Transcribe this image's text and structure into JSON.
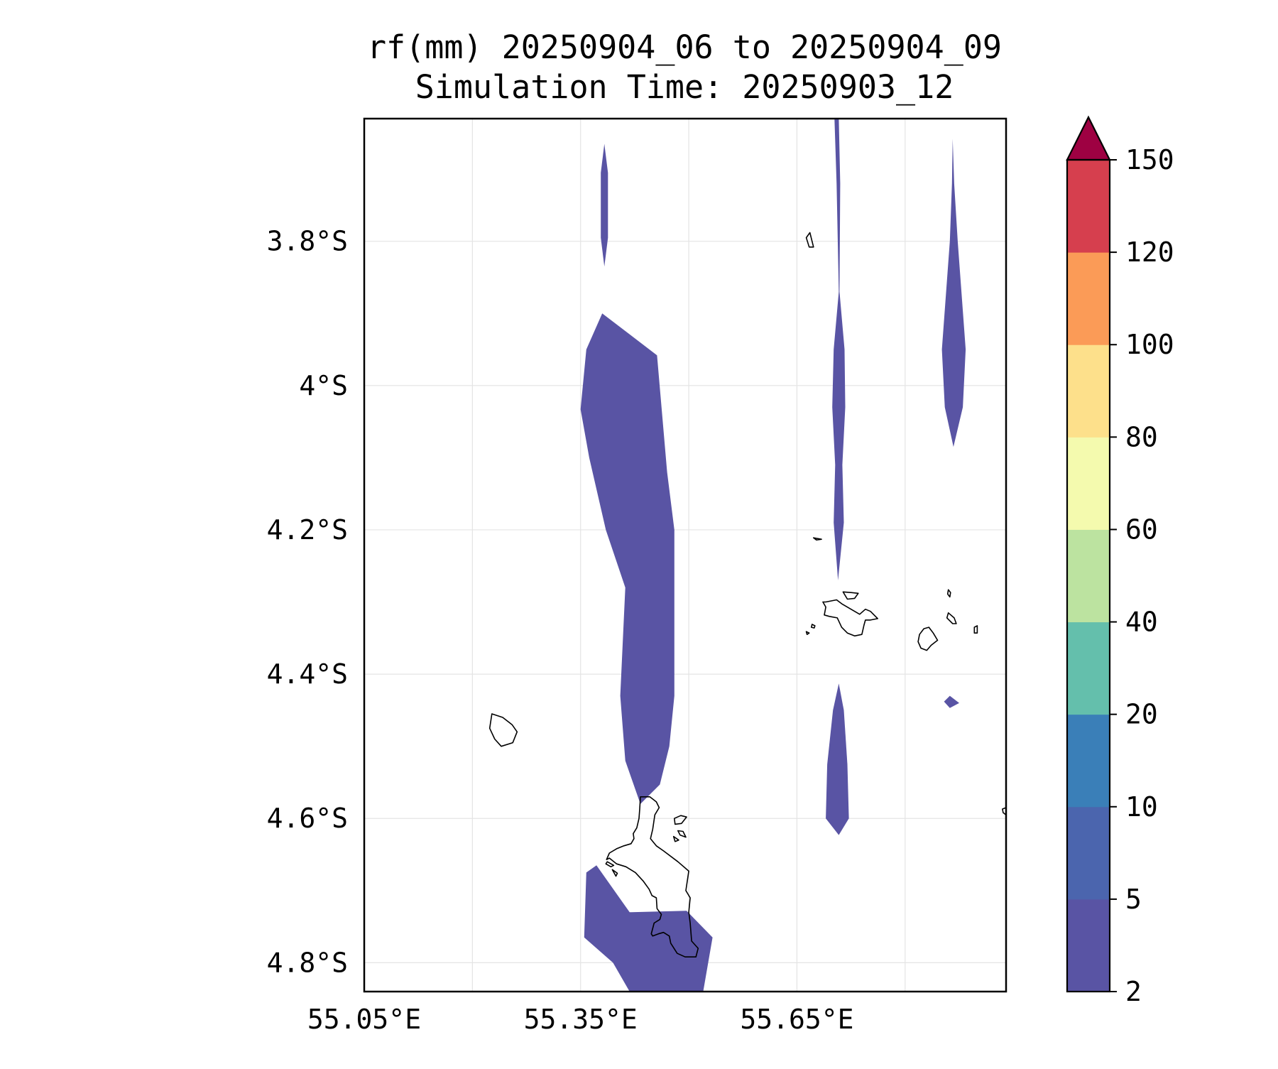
{
  "chart_data": {
    "type": "contour_map",
    "title": "rf(mm) 20250904_06 to 20250904_09",
    "subtitle": "Simulation Time: 20250903_12",
    "xlim": [
      55.05,
      55.94
    ],
    "ylim": [
      -4.84,
      -3.63
    ],
    "x_ticks": [
      {
        "value": 55.05,
        "label": "55.05°E"
      },
      {
        "value": 55.35,
        "label": "55.35°E"
      },
      {
        "value": 55.65,
        "label": "55.65°E"
      }
    ],
    "x_gridlines": [
      55.2,
      55.35,
      55.5,
      55.65,
      55.8
    ],
    "y_ticks": [
      {
        "value": -3.8,
        "label": "3.8°S"
      },
      {
        "value": -4.0,
        "label": "4°S"
      },
      {
        "value": -4.2,
        "label": "4.2°S"
      },
      {
        "value": -4.4,
        "label": "4.4°S"
      },
      {
        "value": -4.6,
        "label": "4.6°S"
      },
      {
        "value": -4.8,
        "label": "4.8°S"
      }
    ],
    "colorbar": {
      "levels": [
        2,
        5,
        10,
        20,
        40,
        60,
        80,
        100,
        120,
        150
      ],
      "labels": [
        "2",
        "5",
        "10",
        "20",
        "40",
        "60",
        "80",
        "100",
        "120",
        "150"
      ],
      "colors": [
        "#5954a4",
        "#4b65ae",
        "#3a7fb8",
        "#64bfac",
        "#bce3a0",
        "#f4faae",
        "#fde08b",
        "#fb9b57",
        "#d63f4e",
        "#9e0142"
      ],
      "extend": "max"
    },
    "rain_color": "#5954a4",
    "coast_color": "#000000",
    "rain_regions": [
      {
        "name": "north-narrow-cell",
        "level": "2-5",
        "points": [
          [
            55.383,
            -3.665
          ],
          [
            55.388,
            -3.705
          ],
          [
            55.388,
            -3.795
          ],
          [
            55.383,
            -3.835
          ],
          [
            55.378,
            -3.795
          ],
          [
            55.378,
            -3.705
          ]
        ]
      },
      {
        "name": "central-band",
        "level": "2-5",
        "points": [
          [
            55.38,
            -3.9
          ],
          [
            55.456,
            -3.958
          ],
          [
            55.47,
            -4.12
          ],
          [
            55.48,
            -4.2
          ],
          [
            55.48,
            -4.43
          ],
          [
            55.473,
            -4.5
          ],
          [
            55.46,
            -4.553
          ],
          [
            55.433,
            -4.58
          ],
          [
            55.412,
            -4.52
          ],
          [
            55.405,
            -4.43
          ],
          [
            55.412,
            -4.28
          ],
          [
            55.385,
            -4.2
          ],
          [
            55.362,
            -4.1
          ],
          [
            55.35,
            -4.033
          ],
          [
            55.358,
            -3.95
          ]
        ]
      },
      {
        "name": "southern-cell",
        "level": "2-5",
        "points": [
          [
            55.358,
            -4.675
          ],
          [
            55.372,
            -4.665
          ],
          [
            55.418,
            -4.73
          ],
          [
            55.497,
            -4.728
          ],
          [
            55.533,
            -4.765
          ],
          [
            55.52,
            -4.84
          ],
          [
            55.418,
            -4.84
          ],
          [
            55.395,
            -4.8
          ],
          [
            55.355,
            -4.765
          ]
        ]
      },
      {
        "name": "eastern-narrow-band",
        "level": "2-5",
        "points": [
          [
            55.702,
            -3.63
          ],
          [
            55.708,
            -3.63
          ],
          [
            55.71,
            -3.72
          ],
          [
            55.709,
            -3.87
          ],
          [
            55.716,
            -3.95
          ],
          [
            55.717,
            -4.03
          ],
          [
            55.713,
            -4.11
          ],
          [
            55.715,
            -4.19
          ],
          [
            55.707,
            -4.27
          ],
          [
            55.701,
            -4.19
          ],
          [
            55.703,
            -4.11
          ],
          [
            55.699,
            -4.03
          ],
          [
            55.701,
            -3.95
          ],
          [
            55.708,
            -3.87
          ],
          [
            55.705,
            -3.72
          ]
        ]
      },
      {
        "name": "far-east-band",
        "level": "2-5",
        "points": [
          [
            55.866,
            -3.658
          ],
          [
            55.868,
            -3.72
          ],
          [
            55.873,
            -3.8
          ],
          [
            55.884,
            -3.95
          ],
          [
            55.88,
            -4.03
          ],
          [
            55.867,
            -4.085
          ],
          [
            55.855,
            -4.03
          ],
          [
            55.851,
            -3.95
          ],
          [
            55.862,
            -3.8
          ],
          [
            55.865,
            -3.72
          ]
        ]
      },
      {
        "name": "southeast-cell",
        "level": "2-5",
        "points": [
          [
            55.708,
            -4.413
          ],
          [
            55.715,
            -4.45
          ],
          [
            55.72,
            -4.525
          ],
          [
            55.722,
            -4.6
          ],
          [
            55.708,
            -4.623
          ],
          [
            55.69,
            -4.6
          ],
          [
            55.692,
            -4.525
          ],
          [
            55.7,
            -4.45
          ]
        ]
      },
      {
        "name": "small-east-cell",
        "level": "2-5",
        "points": [
          [
            55.854,
            -4.438
          ],
          [
            55.862,
            -4.43
          ],
          [
            55.875,
            -4.44
          ],
          [
            55.862,
            -4.447
          ]
        ]
      }
    ],
    "coastlines": [
      {
        "name": "mahe-island",
        "points": [
          [
            55.433,
            -4.57
          ],
          [
            55.446,
            -4.57
          ],
          [
            55.455,
            -4.577
          ],
          [
            55.459,
            -4.585
          ],
          [
            55.453,
            -4.595
          ],
          [
            55.45,
            -4.615
          ],
          [
            55.447,
            -4.628
          ],
          [
            55.455,
            -4.638
          ],
          [
            55.465,
            -4.645
          ],
          [
            55.485,
            -4.66
          ],
          [
            55.5,
            -4.673
          ],
          [
            55.496,
            -4.7
          ],
          [
            55.502,
            -4.71
          ],
          [
            55.5,
            -4.73
          ],
          [
            55.502,
            -4.745
          ],
          [
            55.504,
            -4.77
          ],
          [
            55.513,
            -4.78
          ],
          [
            55.51,
            -4.792
          ],
          [
            55.495,
            -4.792
          ],
          [
            55.484,
            -4.787
          ],
          [
            55.475,
            -4.773
          ],
          [
            55.473,
            -4.763
          ],
          [
            55.465,
            -4.758
          ],
          [
            55.458,
            -4.76
          ],
          [
            55.45,
            -4.763
          ],
          [
            55.448,
            -4.76
          ],
          [
            55.452,
            -4.745
          ],
          [
            55.46,
            -4.74
          ],
          [
            55.462,
            -4.733
          ],
          [
            55.456,
            -4.725
          ],
          [
            55.455,
            -4.71
          ],
          [
            55.449,
            -4.707
          ],
          [
            55.445,
            -4.698
          ],
          [
            55.437,
            -4.687
          ],
          [
            55.426,
            -4.675
          ],
          [
            55.413,
            -4.667
          ],
          [
            55.4,
            -4.663
          ],
          [
            55.39,
            -4.655
          ],
          [
            55.386,
            -4.657
          ],
          [
            55.39,
            -4.648
          ],
          [
            55.4,
            -4.642
          ],
          [
            55.41,
            -4.638
          ],
          [
            55.42,
            -4.635
          ],
          [
            55.424,
            -4.628
          ],
          [
            55.423,
            -4.621
          ],
          [
            55.428,
            -4.613
          ],
          [
            55.431,
            -4.6
          ],
          [
            55.432,
            -4.587
          ]
        ]
      },
      {
        "name": "silhouette-island",
        "points": [
          [
            55.227,
            -4.455
          ],
          [
            55.242,
            -4.46
          ],
          [
            55.255,
            -4.47
          ],
          [
            55.262,
            -4.48
          ],
          [
            55.256,
            -4.495
          ],
          [
            55.24,
            -4.5
          ],
          [
            55.231,
            -4.49
          ],
          [
            55.224,
            -4.475
          ]
        ]
      },
      {
        "name": "praslin-island",
        "points": [
          [
            55.69,
            -4.3
          ],
          [
            55.705,
            -4.297
          ],
          [
            55.713,
            -4.303
          ],
          [
            55.725,
            -4.31
          ],
          [
            55.737,
            -4.317
          ],
          [
            55.745,
            -4.31
          ],
          [
            55.752,
            -4.313
          ],
          [
            55.762,
            -4.323
          ],
          [
            55.752,
            -4.325
          ],
          [
            55.745,
            -4.325
          ],
          [
            55.743,
            -4.332
          ],
          [
            55.74,
            -4.345
          ],
          [
            55.73,
            -4.347
          ],
          [
            55.72,
            -4.343
          ],
          [
            55.712,
            -4.335
          ],
          [
            55.706,
            -4.322
          ],
          [
            55.695,
            -4.32
          ],
          [
            55.688,
            -4.318
          ],
          [
            55.69,
            -4.307
          ],
          [
            55.686,
            -4.3
          ]
        ]
      },
      {
        "name": "curieuse-island",
        "points": [
          [
            55.714,
            -4.286
          ],
          [
            55.726,
            -4.287
          ],
          [
            55.735,
            -4.288
          ],
          [
            55.73,
            -4.295
          ],
          [
            55.72,
            -4.296
          ]
        ]
      },
      {
        "name": "la-digue-island",
        "points": [
          [
            55.826,
            -4.337
          ],
          [
            55.833,
            -4.335
          ],
          [
            55.839,
            -4.343
          ],
          [
            55.845,
            -4.353
          ],
          [
            55.836,
            -4.36
          ],
          [
            55.83,
            -4.367
          ],
          [
            55.822,
            -4.364
          ],
          [
            55.818,
            -4.355
          ],
          [
            55.82,
            -4.345
          ]
        ]
      },
      {
        "name": "felicite-island",
        "points": [
          [
            55.86,
            -4.315
          ],
          [
            55.868,
            -4.322
          ],
          [
            55.871,
            -4.33
          ],
          [
            55.866,
            -4.33
          ],
          [
            55.858,
            -4.322
          ]
        ]
      },
      {
        "name": "east-islet",
        "points": [
          [
            55.896,
            -4.335
          ],
          [
            55.9,
            -4.333
          ],
          [
            55.9,
            -4.343
          ],
          [
            55.896,
            -4.343
          ]
        ]
      },
      {
        "name": "cousin-islet",
        "points": [
          [
            55.663,
            -4.341
          ],
          [
            55.667,
            -4.343
          ],
          [
            55.664,
            -4.345
          ]
        ]
      },
      {
        "name": "small-islet-west",
        "points": [
          [
            55.671,
            -4.331
          ],
          [
            55.675,
            -4.333
          ],
          [
            55.674,
            -4.336
          ],
          [
            55.67,
            -4.335
          ]
        ]
      },
      {
        "name": "northwest-islet",
        "points": [
          [
            55.663,
            -3.795
          ],
          [
            55.668,
            -3.788
          ],
          [
            55.673,
            -3.808
          ],
          [
            55.667,
            -3.808
          ]
        ]
      },
      {
        "name": "north-small-islet",
        "points": [
          [
            55.673,
            -4.211
          ],
          [
            55.684,
            -4.213
          ],
          [
            55.677,
            -4.214
          ]
        ]
      },
      {
        "name": "felicite-north-islet",
        "points": [
          [
            55.86,
            -4.283
          ],
          [
            55.863,
            -4.287
          ],
          [
            55.862,
            -4.293
          ],
          [
            55.859,
            -4.289
          ]
        ]
      },
      {
        "name": "east-edge-islet",
        "points": [
          [
            55.935,
            -4.587
          ],
          [
            55.94,
            -4.585
          ],
          [
            55.94,
            -4.595
          ],
          [
            55.936,
            -4.592
          ]
        ]
      },
      {
        "name": "ste-anne-islet",
        "points": [
          [
            55.48,
            -4.6
          ],
          [
            55.489,
            -4.596
          ],
          [
            55.497,
            -4.598
          ],
          [
            55.49,
            -4.607
          ],
          [
            55.481,
            -4.608
          ]
        ]
      },
      {
        "name": "cerf-islet",
        "points": [
          [
            55.485,
            -4.617
          ],
          [
            55.492,
            -4.618
          ],
          [
            55.496,
            -4.626
          ],
          [
            55.488,
            -4.623
          ]
        ]
      },
      {
        "name": "moyenne-islet",
        "points": [
          [
            55.479,
            -4.625
          ],
          [
            55.486,
            -4.63
          ],
          [
            55.481,
            -4.632
          ]
        ]
      },
      {
        "name": "therese-islet",
        "points": [
          [
            55.387,
            -4.66
          ],
          [
            55.396,
            -4.665
          ],
          [
            55.392,
            -4.667
          ],
          [
            55.385,
            -4.663
          ]
        ]
      },
      {
        "name": "conception-islet",
        "points": [
          [
            55.394,
            -4.671
          ],
          [
            55.401,
            -4.676
          ],
          [
            55.399,
            -4.68
          ]
        ]
      }
    ]
  }
}
